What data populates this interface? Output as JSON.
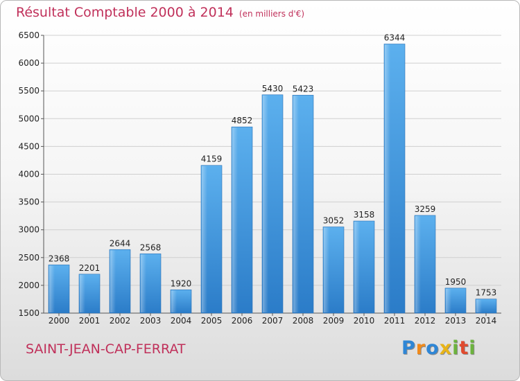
{
  "chart_data": {
    "type": "bar",
    "title": "Résultat Comptable 2000 à 2014",
    "unit": "(en milliers d'€)",
    "categories": [
      "2000",
      "2001",
      "2002",
      "2003",
      "2004",
      "2005",
      "2006",
      "2007",
      "2008",
      "2009",
      "2010",
      "2011",
      "2012",
      "2013",
      "2014"
    ],
    "values": [
      2368,
      2201,
      2644,
      2568,
      1920,
      4159,
      4852,
      5430,
      5423,
      3052,
      3158,
      6344,
      3259,
      1950,
      1753
    ],
    "ylim": [
      1500,
      6500
    ],
    "yticks": [
      1500,
      2000,
      2500,
      3000,
      3500,
      4000,
      4500,
      5000,
      5500,
      6000,
      6500
    ],
    "grid": true,
    "bar_color": "#4a9fe0"
  },
  "footer": {
    "town": "SAINT-JEAN-CAP-FERRAT"
  },
  "logo": {
    "letters": [
      "P",
      "r",
      "o",
      "x",
      "i",
      "t",
      "i"
    ],
    "colors": [
      "#2e86d6",
      "#f08a1c",
      "#2e86d6",
      "#e8b418",
      "#6cb33e",
      "#e04a2e",
      "#6cb33e"
    ]
  }
}
